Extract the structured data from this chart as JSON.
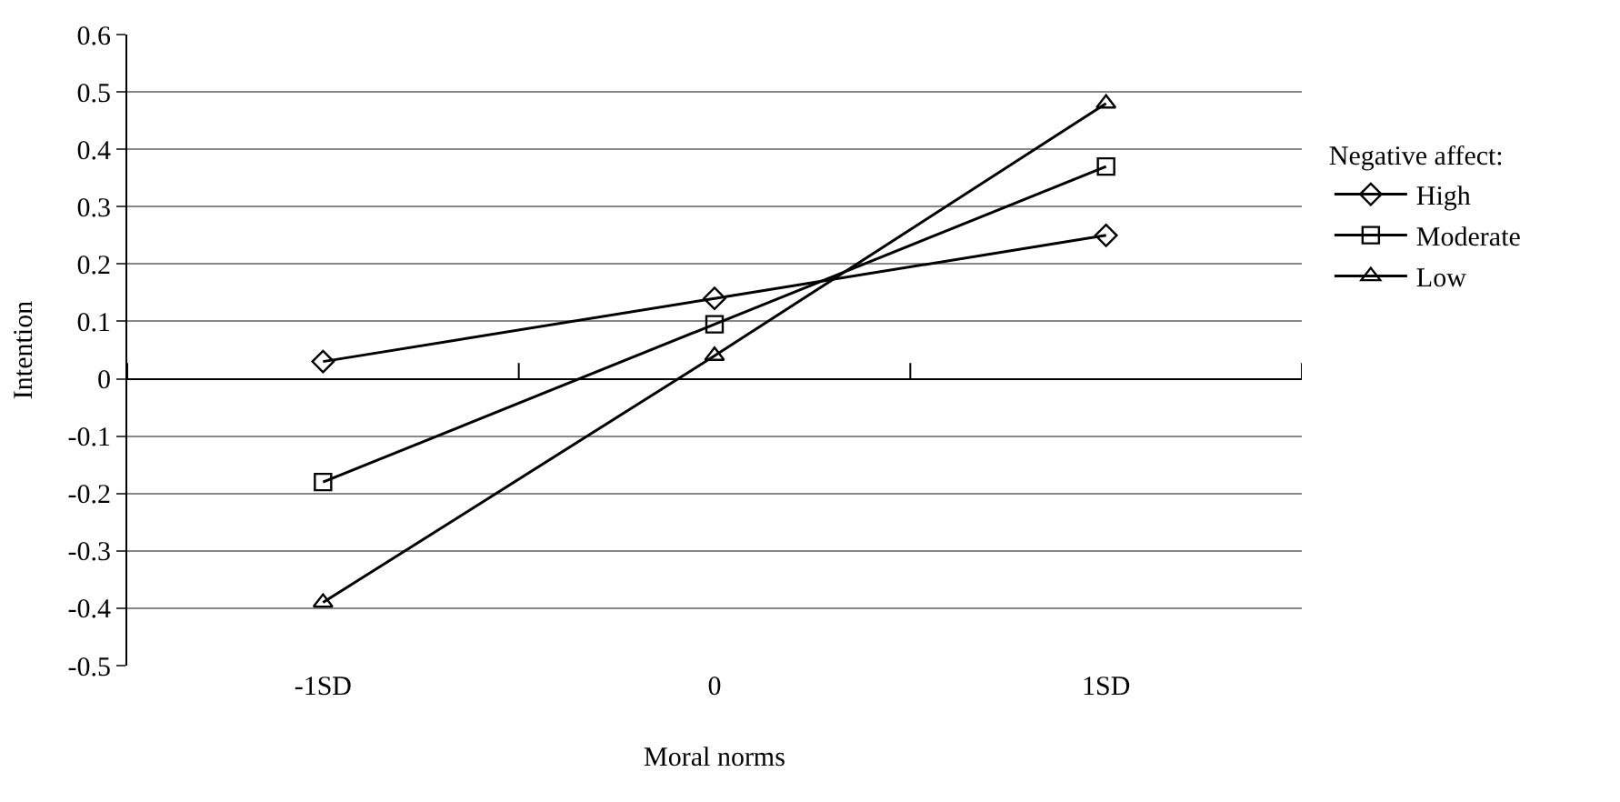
{
  "chart_data": {
    "type": "line",
    "xlabel": "Moral norms",
    "ylabel": "Intention",
    "legend_title": "Negative affect:",
    "categories": [
      "-1SD",
      "0",
      "1SD"
    ],
    "series": [
      {
        "name": "High",
        "color": "#000000",
        "marker": "diamond",
        "values": [
          0.03,
          0.14,
          0.25
        ]
      },
      {
        "name": "Moderate",
        "color": "#000000",
        "marker": "square",
        "values": [
          -0.18,
          0.095,
          0.37
        ]
      },
      {
        "name": "Low",
        "color": "#000000",
        "marker": "triangle",
        "values": [
          -0.39,
          0.04,
          0.48
        ]
      }
    ],
    "ylim": [
      -0.5,
      0.6
    ],
    "yticks": [
      -0.5,
      -0.4,
      -0.3,
      -0.2,
      -0.1,
      0,
      0.1,
      0.2,
      0.3,
      0.4,
      0.5,
      0.6
    ],
    "grid": "y",
    "legend": "right",
    "line_style": "solid"
  }
}
